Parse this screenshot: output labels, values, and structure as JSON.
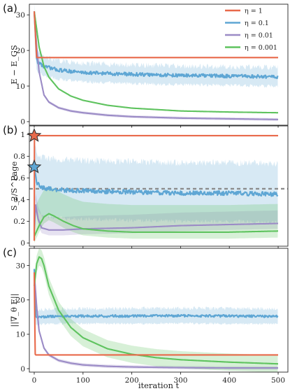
{
  "chart_data": [
    {
      "type": "line",
      "panel_label": "(a)",
      "ylabel": "E − E_GS",
      "xlim": [
        -10,
        520
      ],
      "ylim": [
        -1,
        33
      ],
      "yticks": [
        0,
        10,
        20,
        30
      ],
      "legend": {
        "placement": "top-right",
        "entries": [
          "η = 1",
          "η = 0.1",
          "η = 0.01",
          "η = 0.001"
        ]
      },
      "series": [
        {
          "name": "η = 1",
          "color": "#e8694a",
          "x": [
            0,
            5,
            500
          ],
          "y": [
            31,
            18,
            18
          ],
          "band": [
            [
              0,
              0,
              0
            ],
            [
              0,
              0,
              0
            ]
          ],
          "noise": 0
        },
        {
          "name": "η = 0.1",
          "color": "#5ea6d4",
          "x": [
            0,
            5,
            20,
            50,
            100,
            200,
            300,
            400,
            500
          ],
          "y": [
            31,
            17,
            15.5,
            14.5,
            13.8,
            13.3,
            13,
            12.8,
            12.6
          ],
          "band": [
            2.6,
            2.6
          ],
          "noise": 0.5
        },
        {
          "name": "η = 0.01",
          "color": "#9b8bc6",
          "x": [
            0,
            5,
            10,
            20,
            30,
            50,
            75,
            100,
            150,
            200,
            300,
            400,
            500
          ],
          "y": [
            31,
            21,
            14,
            7.5,
            5.5,
            3.9,
            3.0,
            2.5,
            1.8,
            1.4,
            1.0,
            0.8,
            0.6
          ],
          "band": [
            0.4,
            0.4
          ],
          "noise": 0
        },
        {
          "name": "η = 0.001",
          "color": "#5fc35f",
          "x": [
            0,
            5,
            10,
            20,
            30,
            50,
            75,
            100,
            150,
            200,
            300,
            400,
            500
          ],
          "y": [
            31,
            26,
            21,
            15.5,
            12.5,
            9.2,
            7.2,
            6.0,
            4.6,
            3.8,
            3.0,
            2.7,
            2.5
          ],
          "band": [
            0.12,
            0.12
          ],
          "noise": 0
        }
      ]
    },
    {
      "type": "line",
      "panel_label": "(b)",
      "ylabel": "S_2/S^Page",
      "xlim": [
        -10,
        520
      ],
      "ylim": [
        -0.03,
        1.08
      ],
      "yticks": [
        0.0,
        0.2,
        0.4,
        0.6,
        0.8,
        1.0
      ],
      "reference_line": {
        "y": 0.5,
        "style": "dashed",
        "color": "#8a8a8a"
      },
      "markers": [
        {
          "x": 0,
          "y": 0.99,
          "shape": "star",
          "color": "#e8694a"
        },
        {
          "x": 0,
          "y": 0.7,
          "shape": "star",
          "color": "#5ea6d4"
        }
      ],
      "series": [
        {
          "name": "η = 1",
          "color": "#e8694a",
          "x": [
            0,
            0.2,
            500
          ],
          "y": [
            0.02,
            0.99,
            0.99
          ],
          "band": [
            0,
            0
          ],
          "noise": 0
        },
        {
          "name": "η = 0.1",
          "color": "#5ea6d4",
          "x": [
            0,
            3,
            6,
            15,
            30,
            50,
            100,
            200,
            300,
            400,
            500
          ],
          "y": [
            0.7,
            0.62,
            0.55,
            0.51,
            0.5,
            0.49,
            0.48,
            0.47,
            0.46,
            0.46,
            0.45
          ],
          "band": [
            0.26,
            0.28
          ],
          "noise": 0.02
        },
        {
          "name": "η = 0.01",
          "color": "#9b8bc6",
          "x": [
            0,
            3,
            8,
            15,
            30,
            60,
            100,
            200,
            300,
            400,
            500
          ],
          "y": [
            0.1,
            0.35,
            0.22,
            0.14,
            0.12,
            0.12,
            0.13,
            0.14,
            0.16,
            0.17,
            0.18
          ],
          "band": [
            0.05,
            0.12
          ],
          "noise": 0
        },
        {
          "name": "η = 0.001",
          "color": "#5fc35f",
          "x": [
            0,
            10,
            20,
            30,
            40,
            60,
            80,
            100,
            150,
            200,
            300,
            400,
            500
          ],
          "y": [
            0.06,
            0.16,
            0.24,
            0.27,
            0.25,
            0.2,
            0.16,
            0.13,
            0.11,
            0.1,
            0.1,
            0.1,
            0.11
          ],
          "band": [
            0.06,
            0.25
          ],
          "noise": 0
        }
      ]
    },
    {
      "type": "line",
      "panel_label": "(c)",
      "ylabel": "||∇_θ E||",
      "xlabel": "iteration t",
      "xlim": [
        -10,
        520
      ],
      "ylim": [
        -1,
        35
      ],
      "yticks": [
        0,
        10,
        20,
        30
      ],
      "xticks": [
        0,
        100,
        200,
        300,
        400,
        500
      ],
      "series": [
        {
          "name": "η = 1",
          "color": "#e8694a",
          "x": [
            0,
            2,
            3,
            500
          ],
          "y": [
            28,
            4.2,
            4.0,
            4.0
          ],
          "band": [
            0,
            0
          ],
          "noise": 0
        },
        {
          "name": "η = 0.1",
          "color": "#5ea6d4",
          "x": [
            0,
            3,
            10,
            30,
            100,
            200,
            300,
            400,
            500
          ],
          "y": [
            29,
            15,
            15,
            15.2,
            15.3,
            15.3,
            15.4,
            15.3,
            15.2
          ],
          "band": [
            2.2,
            2.2
          ],
          "noise": 0.35
        },
        {
          "name": "η = 0.01",
          "color": "#9b8bc6",
          "x": [
            0,
            5,
            10,
            20,
            30,
            50,
            75,
            100,
            150,
            200,
            300,
            400,
            500
          ],
          "y": [
            28,
            18,
            11,
            6.0,
            4.0,
            2.4,
            1.6,
            1.1,
            0.7,
            0.5,
            0.3,
            0.2,
            0.2
          ],
          "band": [
            0.5,
            0.5
          ],
          "noise": 0
        },
        {
          "name": "η = 0.001",
          "color": "#5fc35f",
          "x": [
            0,
            5,
            10,
            15,
            20,
            30,
            50,
            75,
            100,
            150,
            200,
            250,
            300,
            400,
            500
          ],
          "y": [
            24,
            30.5,
            32.5,
            32,
            30,
            24,
            17,
            12,
            9.0,
            5.8,
            4.2,
            3.2,
            2.6,
            1.9,
            1.4
          ],
          "band": [
            2.5,
            2.5
          ],
          "noise": 0
        }
      ]
    }
  ]
}
